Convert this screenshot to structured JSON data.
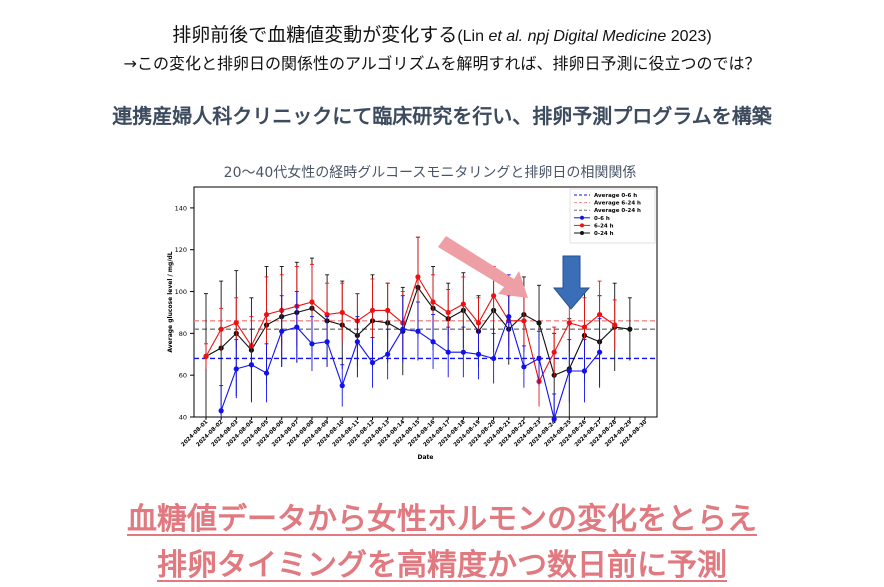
{
  "header": {
    "title": "排卵前後で血糖値変動が変化する",
    "citation_open": "(Lin ",
    "citation_etal": "et al. npj Digital Medicine",
    "citation_close": " 2023)",
    "subtitle": "→この変化と排卵日の関係性のアルゴリズムを解明すれば、排卵日予測に役立つのでは？",
    "headline": "連携産婦人科クリニックにて臨床研究を行い、排卵予測プログラムを構築"
  },
  "footer": {
    "line1": "血糖値データから女性ホルモンの変化をとらえ",
    "line2": "排卵タイミングを高精度かつ数日前に予測"
  },
  "colors": {
    "blue": "#1111ee",
    "red": "#ee1111",
    "black": "#111111",
    "pink_arrow": "#ee9fa5",
    "blue_arrow": "#3a6fb8",
    "accent": "#e07a80"
  },
  "chart_data": {
    "type": "line",
    "title": "20〜40代女性の経時グルコースモニタリングと排卵日の相関関係",
    "xlabel": "Date",
    "ylabel": "Average glucose level / mg/dL",
    "ylim": [
      40,
      150
    ],
    "yticks": [
      40,
      60,
      80,
      100,
      120,
      140
    ],
    "grid": false,
    "legend_position": "top-right",
    "x": [
      "2024-08-01",
      "2024-08-02",
      "2024-08-03",
      "2024-08-04",
      "2024-08-05",
      "2024-08-06",
      "2024-08-07",
      "2024-08-08",
      "2024-08-09",
      "2024-08-10",
      "2024-08-11",
      "2024-08-12",
      "2024-08-13",
      "2024-08-14",
      "2024-08-15",
      "2024-08-16",
      "2024-08-17",
      "2024-08-18",
      "2024-08-19",
      "2024-08-20",
      "2024-08-21",
      "2024-08-22",
      "2024-08-23",
      "2024-08-24",
      "2024-08-25",
      "2024-08-26",
      "2024-08-27",
      "2024-08-28",
      "2024-08-29",
      "2024-08-30"
    ],
    "series": [
      {
        "name": "0-6 h",
        "color": "#1111ee",
        "values": [
          null,
          43,
          63,
          65,
          61,
          81,
          83,
          75,
          76,
          55,
          76,
          66,
          70,
          82,
          81,
          76,
          71,
          71,
          70,
          68,
          88,
          64,
          68,
          39,
          62,
          62,
          71,
          null,
          null,
          null
        ],
        "err": [
          null,
          12,
          14,
          17,
          14,
          17,
          17,
          13,
          12,
          10,
          12,
          12,
          12,
          16,
          14,
          13,
          12,
          12,
          12,
          12,
          20,
          10,
          13,
          12,
          15,
          15,
          16,
          null,
          null,
          null
        ]
      },
      {
        "name": "6-24 h",
        "color": "#ee1111",
        "values": [
          69,
          82,
          85,
          74,
          89,
          91,
          93,
          95,
          89,
          90,
          86,
          91,
          91,
          85,
          107,
          95,
          90,
          94,
          85,
          98,
          86,
          86,
          57,
          71,
          85,
          83,
          89,
          84,
          null,
          null
        ],
        "err": [
          6,
          10,
          12,
          14,
          18,
          17,
          19,
          18,
          15,
          14,
          13,
          15,
          13,
          15,
          19,
          13,
          11,
          13,
          12,
          14,
          12,
          12,
          12,
          12,
          14,
          14,
          16,
          12,
          null,
          null
        ]
      },
      {
        "name": "0-24 h",
        "color": "#111111",
        "values": [
          69,
          73,
          80,
          72,
          84,
          88,
          90,
          92,
          86,
          84,
          79,
          86,
          85,
          81,
          102,
          92,
          87,
          91,
          81,
          91,
          82,
          89,
          85,
          60,
          63,
          79,
          76,
          83,
          82,
          null
        ],
        "err": [
          30,
          32,
          30,
          25,
          28,
          24,
          24,
          24,
          22,
          21,
          20,
          22,
          19,
          21,
          24,
          20,
          17,
          18,
          17,
          20,
          17,
          18,
          18,
          20,
          24,
          22,
          22,
          21,
          15,
          null
        ]
      }
    ],
    "reference_lines": [
      {
        "name": "Average 0-6 h",
        "value": 68,
        "color": "#1111ee"
      },
      {
        "name": "Average 6-24 h",
        "value": 86,
        "color": "#ee8888"
      },
      {
        "name": "Average 0-24 h",
        "value": 82,
        "color": "#777777"
      }
    ]
  }
}
